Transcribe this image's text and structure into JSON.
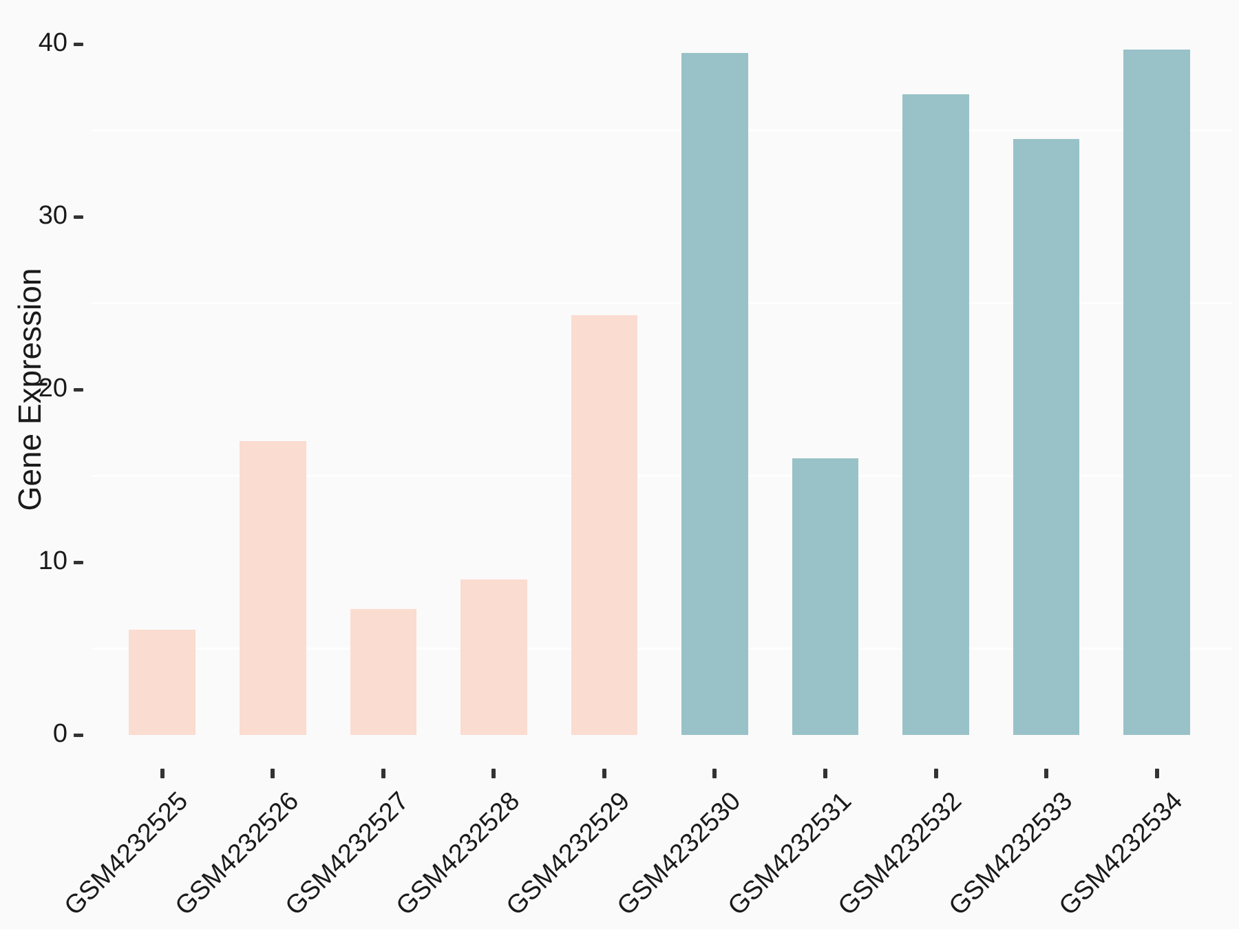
{
  "chart_data": {
    "type": "bar",
    "ylabel": "Gene Expression",
    "categories": [
      "GSM4232525",
      "GSM4232526",
      "GSM4232527",
      "GSM4232528",
      "GSM4232529",
      "GSM4232530",
      "GSM4232531",
      "GSM4232532",
      "GSM4232533",
      "GSM4232534"
    ],
    "values": [
      6.1,
      17,
      7.3,
      9,
      24.3,
      39.5,
      16,
      37.1,
      34.5,
      39.7
    ],
    "bar_groups": [
      "group1",
      "group1",
      "group1",
      "group1",
      "group1",
      "group2",
      "group2",
      "group2",
      "group2",
      "group2"
    ],
    "group_colors": {
      "group1": "#FBDCD0",
      "group2": "#98C2C7"
    },
    "yticks": [
      0,
      10,
      20,
      30,
      40
    ],
    "minor_gridlines": [
      5,
      15,
      25,
      35
    ],
    "ylim": [
      0,
      42.5
    ],
    "xtick_angle": 45,
    "legend": "none",
    "background_color": "#FAFAFA",
    "gridline_color": "#FFFFFF",
    "tick_color": "#333333",
    "text_color": "#1A1A1A"
  }
}
